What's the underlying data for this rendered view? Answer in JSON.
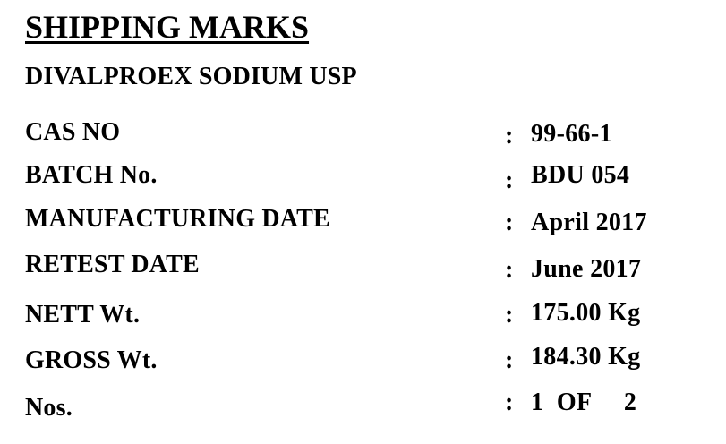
{
  "document": {
    "title": "SHIPPING MARKS",
    "product": "DIVALPROEX SODIUM USP",
    "rows": [
      {
        "label": "CAS NO",
        "colon": ":",
        "value": "99-66-1"
      },
      {
        "label": "BATCH No.",
        "colon": ":",
        "value": "BDU 054"
      },
      {
        "label": "MANUFACTURING DATE",
        "colon": ":",
        "value": "April 2017"
      },
      {
        "label": "RETEST DATE",
        "colon": ":",
        "value": "June 2017"
      },
      {
        "label": "NETT Wt.",
        "colon": ":",
        "value": "175.00 Kg"
      },
      {
        "label": "GROSS Wt.",
        "colon": ":",
        "value": "184.30 Kg"
      },
      {
        "label": "Nos.",
        "colon": ":",
        "value": "1  OF     2"
      }
    ]
  }
}
